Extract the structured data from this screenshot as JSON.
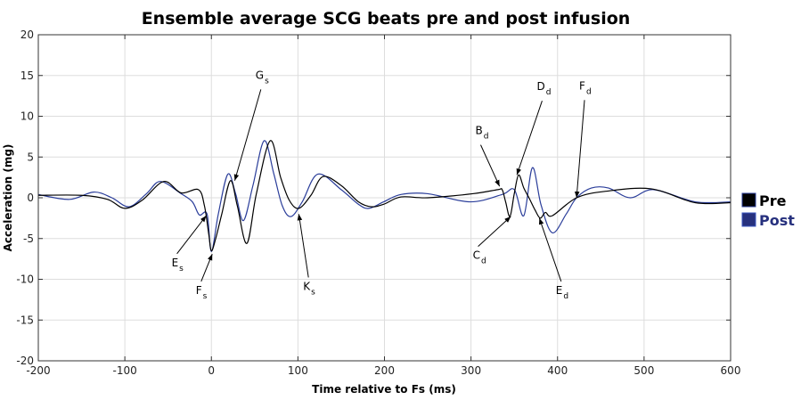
{
  "chart_data": {
    "type": "line",
    "title": "Ensemble average SCG beats pre and post infusion",
    "xlabel": "Time relative to Fs (ms)",
    "ylabel": "Acceleration (mg)",
    "xlim": [
      -200,
      600
    ],
    "ylim": [
      -20,
      20
    ],
    "xticks": [
      -200,
      -100,
      0,
      100,
      200,
      300,
      400,
      500,
      600
    ],
    "yticks": [
      -20,
      -15,
      -10,
      -5,
      0,
      5,
      10,
      15,
      20
    ],
    "grid": true,
    "legend_position": "outside-right",
    "series": [
      {
        "name": "Pre",
        "color": "#000000",
        "x": [
          -200,
          -150,
          -120,
          -100,
          -80,
          -55,
          -35,
          -15,
          -8,
          -3,
          0,
          5,
          12,
          22,
          30,
          41,
          52,
          68,
          80,
          90,
          101,
          115,
          129,
          150,
          170,
          185,
          199,
          219,
          250,
          302,
          331,
          336,
          340,
          345,
          350,
          355,
          361,
          367,
          374,
          380,
          386,
          394,
          422,
          456,
          508,
          559,
          600
        ],
        "y": [
          0.3,
          0.3,
          -0.2,
          -1.3,
          -0.3,
          2.0,
          0.6,
          1.0,
          -1.0,
          -4.5,
          -6.5,
          -5.0,
          -2.0,
          2.1,
          -1.0,
          -5.6,
          0.5,
          7.0,
          2.5,
          -0.3,
          -1.3,
          0.3,
          2.6,
          1.5,
          -0.5,
          -1.1,
          -0.8,
          0.1,
          0.0,
          0.5,
          1.0,
          1.0,
          -0.5,
          -2.3,
          0.5,
          2.8,
          1.2,
          0.0,
          -1.5,
          -2.5,
          -1.8,
          -2.2,
          0.0,
          0.8,
          1.1,
          -0.6,
          -0.6
        ]
      },
      {
        "name": "Post",
        "color": "#2a3d9a",
        "x": [
          -200,
          -164,
          -136,
          -115,
          -95,
          -75,
          -59,
          -35,
          -22,
          -14,
          -5,
          0,
          8,
          19,
          28,
          37,
          48,
          61,
          72,
          82,
          92,
          105,
          123,
          150,
          170,
          182,
          199,
          219,
          250,
          299,
          336,
          350,
          361,
          371,
          381,
          394,
          410,
          422,
          439,
          459,
          484,
          511,
          559,
          600
        ],
        "y": [
          0.4,
          -0.2,
          0.7,
          0.0,
          -1.1,
          0.5,
          2.0,
          0.5,
          -0.5,
          -2.1,
          -2.0,
          -6.6,
          -2.0,
          2.9,
          0.5,
          -2.8,
          1.5,
          7.0,
          3.0,
          -1.0,
          -2.3,
          -0.5,
          2.9,
          1.0,
          -0.8,
          -1.3,
          -0.5,
          0.4,
          0.5,
          -0.5,
          0.4,
          1.0,
          -2.2,
          3.7,
          -0.9,
          -4.3,
          -2.0,
          0.0,
          1.2,
          1.2,
          0.0,
          1.0,
          -0.5,
          -0.5
        ]
      }
    ],
    "annotations": [
      {
        "label": "G",
        "sub": "s",
        "text_at": [
          51,
          14.6
        ],
        "point": [
          27,
          2.1
        ]
      },
      {
        "label": "E",
        "sub": "s",
        "text_at": [
          -46,
          -8.4
        ],
        "point": [
          -6,
          -2.2
        ]
      },
      {
        "label": "F",
        "sub": "s",
        "text_at": [
          -18,
          -11.8
        ],
        "point": [
          1,
          -6.9
        ]
      },
      {
        "label": "K",
        "sub": "s",
        "text_at": [
          106,
          -11.3
        ],
        "point": [
          101,
          -2.0
        ]
      },
      {
        "label": "B",
        "sub": "d",
        "text_at": [
          305,
          7.8
        ],
        "point": [
          333,
          1.4
        ]
      },
      {
        "label": "C",
        "sub": "d",
        "text_at": [
          302,
          -7.5
        ],
        "point": [
          346,
          -2.3
        ]
      },
      {
        "label": "D",
        "sub": "d",
        "text_at": [
          376,
          13.2
        ],
        "point": [
          353,
          2.8
        ]
      },
      {
        "label": "E",
        "sub": "d",
        "text_at": [
          398,
          -11.8
        ],
        "point": [
          379,
          -2.5
        ]
      },
      {
        "label": "F",
        "sub": "d",
        "text_at": [
          425,
          13.3
        ],
        "point": [
          422,
          0.0
        ]
      }
    ]
  }
}
